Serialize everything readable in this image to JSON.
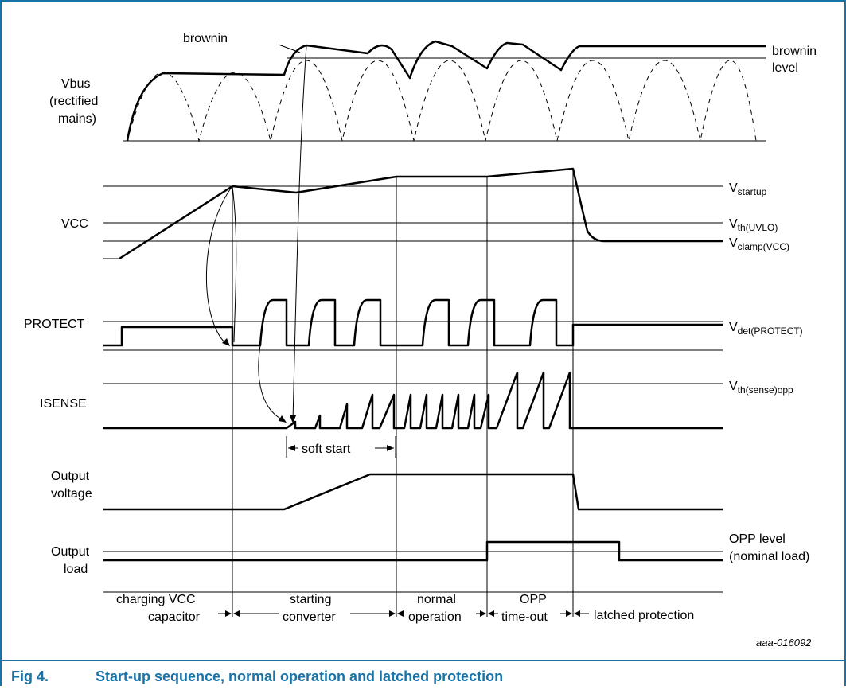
{
  "colors": {
    "frame": "#1a73a8",
    "caption": "#1a73a8",
    "line": "#000000"
  },
  "signals": {
    "vbus": {
      "line1": "Vbus",
      "line2": "(rectified",
      "line3": "mains)"
    },
    "vcc": "VCC",
    "protect": "PROTECT",
    "isense": "ISENSE",
    "output_voltage": {
      "line1": "Output",
      "line2": "voltage"
    },
    "output_load": {
      "line1": "Output",
      "line2": "load"
    }
  },
  "levels": {
    "brownin_callout": "brownin",
    "brownin_level": {
      "line1": "brownin",
      "line2": "level"
    },
    "v_startup": {
      "main": "V",
      "sub": "startup"
    },
    "v_th_uvlo": {
      "main": "V",
      "sub": "th(UVLO)"
    },
    "v_clamp": {
      "main": "V",
      "sub": "clamp(VCC)"
    },
    "v_det_protect": {
      "main": "V",
      "sub": "det(PROTECT)"
    },
    "v_th_sense_opp": {
      "main": "V",
      "sub": "th(sense)opp"
    },
    "opp_level": {
      "line1": "OPP level",
      "line2": "(nominal load)"
    }
  },
  "annotations": {
    "soft_start": "soft start"
  },
  "phases": {
    "p1": {
      "line1": "charging VCC",
      "line2": "capacitor"
    },
    "p2": {
      "line1": "starting",
      "line2": "converter"
    },
    "p3": {
      "line1": "normal",
      "line2": "operation"
    },
    "p4": {
      "line1": "OPP",
      "line2": "time-out"
    },
    "p5": {
      "line1": "latched protection"
    }
  },
  "figure_id": "aaa-016092",
  "caption": {
    "number": "Fig 4.",
    "title": "Start-up sequence, normal operation and latched protection"
  }
}
